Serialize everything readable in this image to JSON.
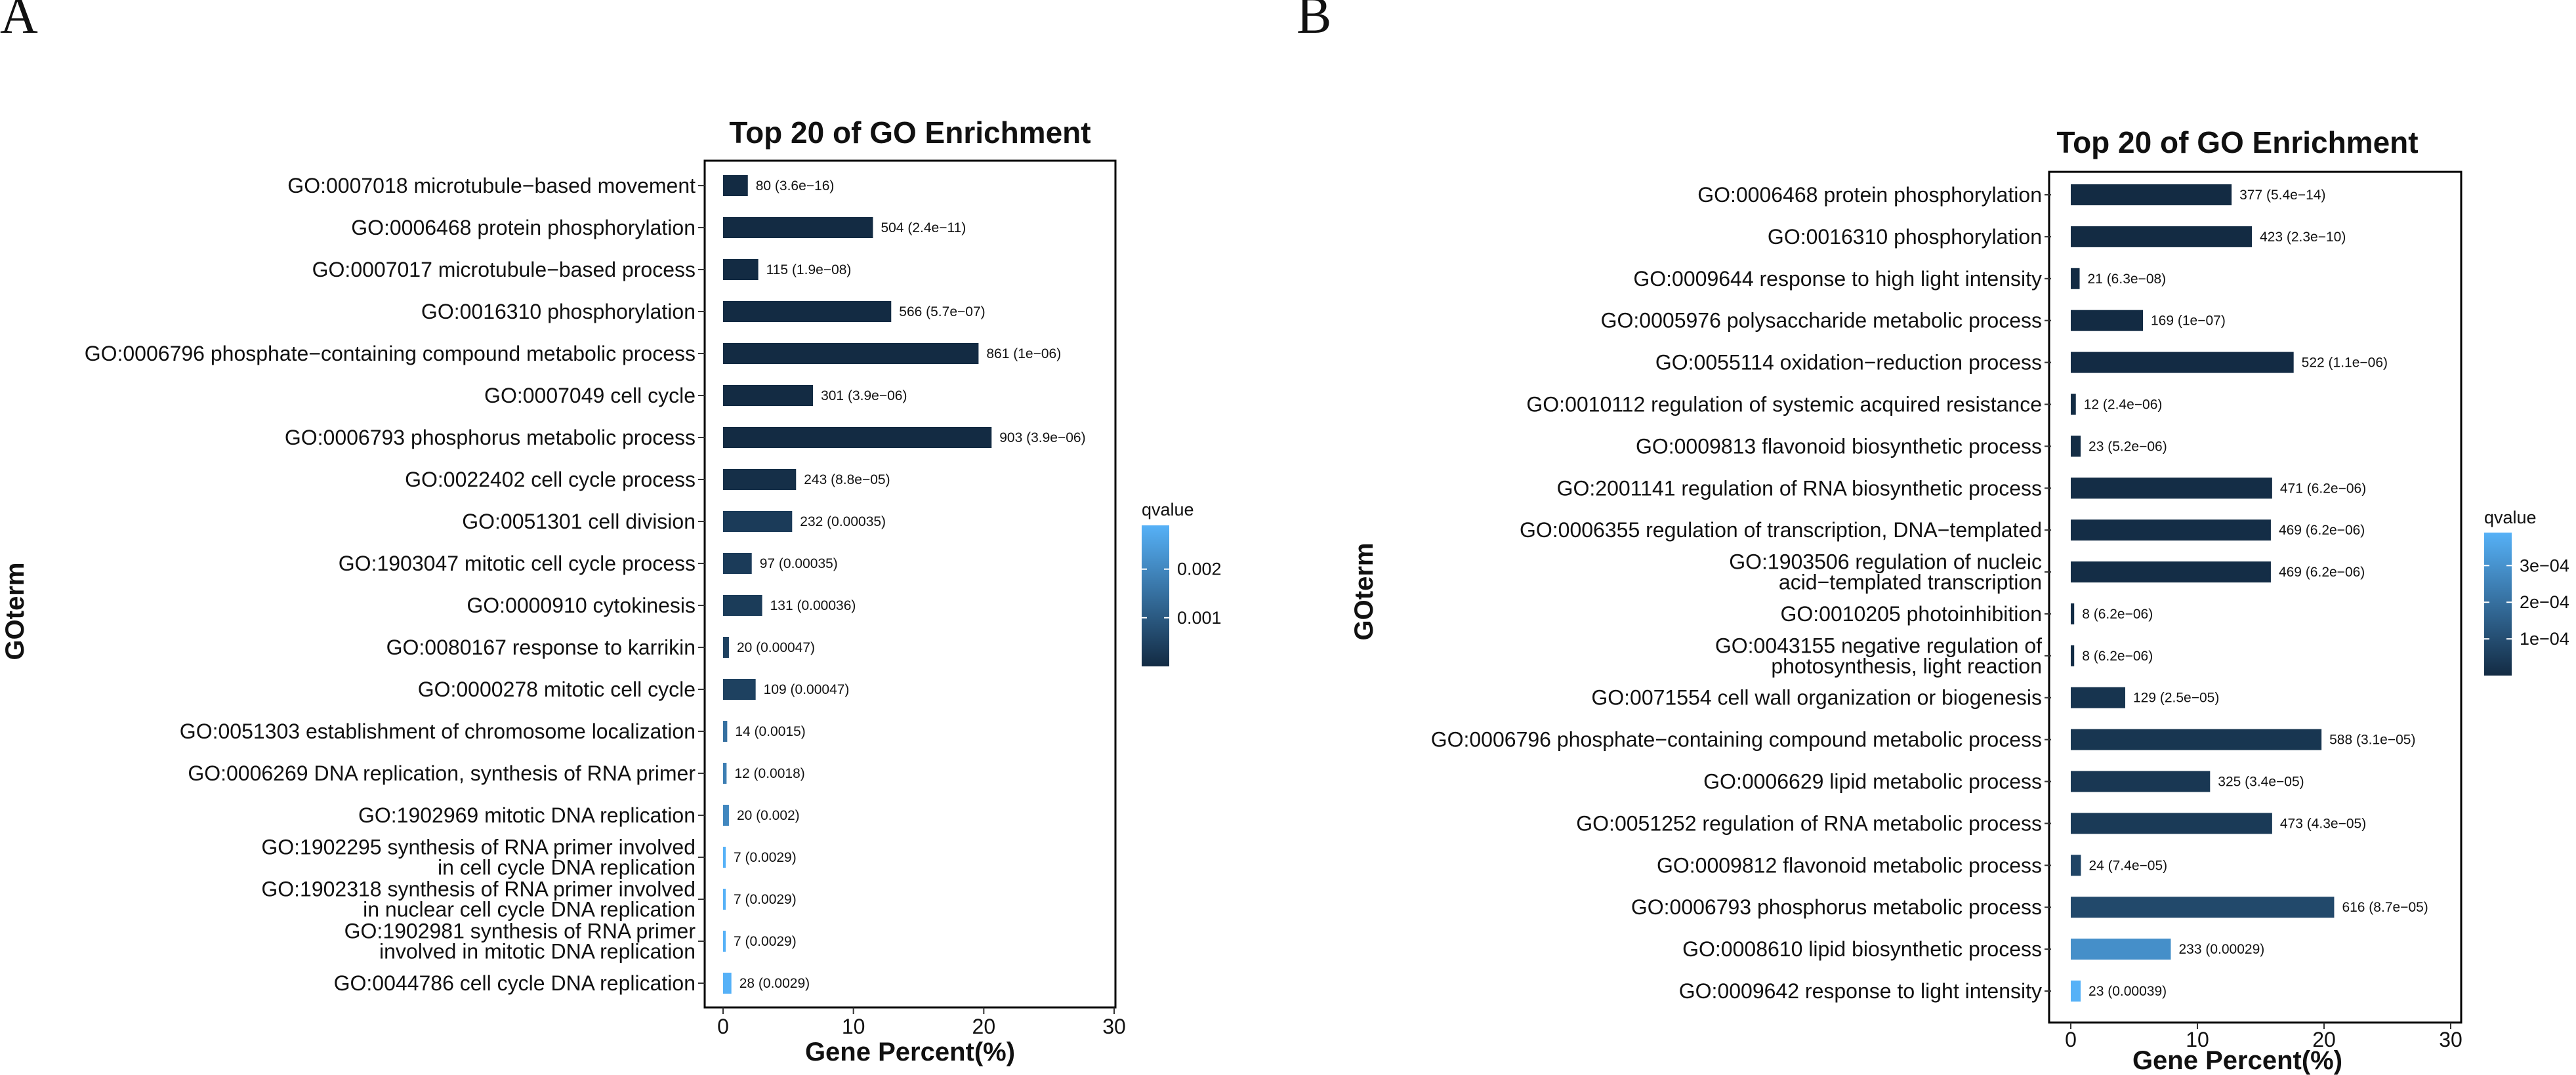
{
  "chart_data": [
    {
      "panel": "A",
      "type": "bar",
      "orientation": "horizontal",
      "title": "Top 20 of GO Enrichment",
      "xlabel": "Gene Percent(%)",
      "ylabel": "GOterm",
      "xlim": [
        0,
        30
      ],
      "xticks": [
        "0",
        "10",
        "20",
        "30"
      ],
      "legend": {
        "title": "qvalue",
        "ticks": [
          "0.002",
          "0.001"
        ],
        "range": [
          0,
          0.0029
        ],
        "tick_values": [
          0.002,
          0.001
        ],
        "position": "right"
      },
      "bars": [
        {
          "term": [
            "GO:0007018 microtubule−based movement"
          ],
          "value": 1.9,
          "label": "80 (3.6e−16)",
          "qvalue": 3.6e-16
        },
        {
          "term": [
            "GO:0006468 protein phosphorylation"
          ],
          "value": 11.5,
          "label": "504 (2.4e−11)",
          "qvalue": 2.4e-11
        },
        {
          "term": [
            "GO:0007017 microtubule−based process"
          ],
          "value": 2.7,
          "label": "115 (1.9e−08)",
          "qvalue": 1.9e-08
        },
        {
          "term": [
            "GO:0016310 phosphorylation"
          ],
          "value": 12.9,
          "label": "566 (5.7e−07)",
          "qvalue": 5.7e-07
        },
        {
          "term": [
            "GO:0006796 phosphate−containing compound metabolic process"
          ],
          "value": 19.6,
          "label": "861 (1e−06)",
          "qvalue": 1e-06
        },
        {
          "term": [
            "GO:0007049 cell cycle"
          ],
          "value": 6.9,
          "label": "301 (3.9e−06)",
          "qvalue": 3.9e-06
        },
        {
          "term": [
            "GO:0006793 phosphorus metabolic process"
          ],
          "value": 20.6,
          "label": "903 (3.9e−06)",
          "qvalue": 3.9e-06
        },
        {
          "term": [
            "GO:0022402 cell cycle process"
          ],
          "value": 5.6,
          "label": "243 (8.8e−05)",
          "qvalue": 8.8e-05
        },
        {
          "term": [
            "GO:0051301 cell division"
          ],
          "value": 5.3,
          "label": "232 (0.00035)",
          "qvalue": 0.00035
        },
        {
          "term": [
            "GO:1903047 mitotic cell cycle process"
          ],
          "value": 2.2,
          "label": "97 (0.00035)",
          "qvalue": 0.00035
        },
        {
          "term": [
            "GO:0000910 cytokinesis"
          ],
          "value": 3.0,
          "label": "131 (0.00036)",
          "qvalue": 0.00036
        },
        {
          "term": [
            "GO:0080167 response to karrikin"
          ],
          "value": 0.45,
          "label": "20 (0.00047)",
          "qvalue": 0.00047
        },
        {
          "term": [
            "GO:0000278 mitotic cell cycle"
          ],
          "value": 2.5,
          "label": "109 (0.00047)",
          "qvalue": 0.00047
        },
        {
          "term": [
            "GO:0051303 establishment of chromosome localization"
          ],
          "value": 0.32,
          "label": "14 (0.0015)",
          "qvalue": 0.0015
        },
        {
          "term": [
            "GO:0006269 DNA replication, synthesis of RNA primer"
          ],
          "value": 0.27,
          "label": "12 (0.0018)",
          "qvalue": 0.0018
        },
        {
          "term": [
            "GO:1902969 mitotic DNA replication"
          ],
          "value": 0.45,
          "label": "20 (0.002)",
          "qvalue": 0.002
        },
        {
          "term": [
            "GO:1902295 synthesis of RNA primer involved",
            "in cell cycle DNA replication"
          ],
          "value": 0.16,
          "label": "7 (0.0029)",
          "qvalue": 0.0029
        },
        {
          "term": [
            "GO:1902318 synthesis of RNA primer involved",
            "in nuclear cell cycle DNA replication"
          ],
          "value": 0.16,
          "label": "7 (0.0029)",
          "qvalue": 0.0029
        },
        {
          "term": [
            "GO:1902981 synthesis of RNA primer",
            "involved in mitotic DNA replication"
          ],
          "value": 0.16,
          "label": "7 (0.0029)",
          "qvalue": 0.0029
        },
        {
          "term": [
            "GO:0044786 cell cycle DNA replication"
          ],
          "value": 0.64,
          "label": "28 (0.0029)",
          "qvalue": 0.0029
        }
      ]
    },
    {
      "panel": "B",
      "type": "bar",
      "orientation": "horizontal",
      "title": "Top 20 of GO Enrichment",
      "xlabel": "Gene Percent(%)",
      "ylabel": "GOterm",
      "xlim": [
        0,
        30
      ],
      "xticks": [
        "0",
        "10",
        "20",
        "30"
      ],
      "legend": {
        "title": "qvalue",
        "ticks": [
          "3e−04",
          "2e−04",
          "1e−04"
        ],
        "range": [
          0,
          0.00039
        ],
        "tick_values": [
          0.0003,
          0.0002,
          0.0001
        ],
        "position": "right"
      },
      "bars": [
        {
          "term": [
            "GO:0006468 protein phosphorylation"
          ],
          "value": 12.7,
          "label": "377 (5.4e−14)",
          "qvalue": 5.4e-14
        },
        {
          "term": [
            "GO:0016310 phosphorylation"
          ],
          "value": 14.3,
          "label": "423 (2.3e−10)",
          "qvalue": 2.3e-10
        },
        {
          "term": [
            "GO:0009644 response to high light intensity"
          ],
          "value": 0.7,
          "label": "21 (6.3e−08)",
          "qvalue": 6.3e-08
        },
        {
          "term": [
            "GO:0005976 polysaccharide metabolic process"
          ],
          "value": 5.7,
          "label": "169 (1e−07)",
          "qvalue": 1e-07
        },
        {
          "term": [
            "GO:0055114 oxidation−reduction process"
          ],
          "value": 17.6,
          "label": "522 (1.1e−06)",
          "qvalue": 1.1e-06
        },
        {
          "term": [
            "GO:0010112 regulation of systemic acquired resistance"
          ],
          "value": 0.4,
          "label": "12 (2.4e−06)",
          "qvalue": 2.4e-06
        },
        {
          "term": [
            "GO:0009813 flavonoid biosynthetic process"
          ],
          "value": 0.78,
          "label": "23 (5.2e−06)",
          "qvalue": 5.2e-06
        },
        {
          "term": [
            "GO:2001141 regulation of RNA biosynthetic process"
          ],
          "value": 15.9,
          "label": "471 (6.2e−06)",
          "qvalue": 6.2e-06
        },
        {
          "term": [
            "GO:0006355 regulation of transcription, DNA−templated"
          ],
          "value": 15.8,
          "label": "469 (6.2e−06)",
          "qvalue": 6.2e-06
        },
        {
          "term": [
            "GO:1903506 regulation of nucleic",
            "acid−templated transcription"
          ],
          "value": 15.8,
          "label": "469 (6.2e−06)",
          "qvalue": 6.2e-06
        },
        {
          "term": [
            "GO:0010205 photoinhibition"
          ],
          "value": 0.27,
          "label": "8 (6.2e−06)",
          "qvalue": 6.2e-06
        },
        {
          "term": [
            "GO:0043155 negative regulation of",
            "photosynthesis, light reaction"
          ],
          "value": 0.27,
          "label": "8 (6.2e−06)",
          "qvalue": 6.2e-06
        },
        {
          "term": [
            "GO:0071554 cell wall organization or biogenesis"
          ],
          "value": 4.3,
          "label": "129 (2.5e−05)",
          "qvalue": 2.5e-05
        },
        {
          "term": [
            "GO:0006796 phosphate−containing compound metabolic process"
          ],
          "value": 19.8,
          "label": "588 (3.1e−05)",
          "qvalue": 3.1e-05
        },
        {
          "term": [
            "GO:0006629 lipid metabolic process"
          ],
          "value": 11.0,
          "label": "325 (3.4e−05)",
          "qvalue": 3.4e-05
        },
        {
          "term": [
            "GO:0051252 regulation of RNA metabolic process"
          ],
          "value": 15.9,
          "label": "473 (4.3e−05)",
          "qvalue": 4.3e-05
        },
        {
          "term": [
            "GO:0009812 flavonoid metabolic process"
          ],
          "value": 0.8,
          "label": "24 (7.4e−05)",
          "qvalue": 7.4e-05
        },
        {
          "term": [
            "GO:0006793 phosphorus metabolic process"
          ],
          "value": 20.8,
          "label": "616 (8.7e−05)",
          "qvalue": 8.7e-05
        },
        {
          "term": [
            "GO:0008610 lipid biosynthetic process"
          ],
          "value": 7.9,
          "label": "233 (0.00029)",
          "qvalue": 0.00029
        },
        {
          "term": [
            "GO:0009642 response to light intensity"
          ],
          "value": 0.78,
          "label": "23 (0.00039)",
          "qvalue": 0.00039
        }
      ]
    }
  ],
  "colors": {
    "low": "#132B43",
    "high": "#56B1F7",
    "frame": "#000000"
  }
}
